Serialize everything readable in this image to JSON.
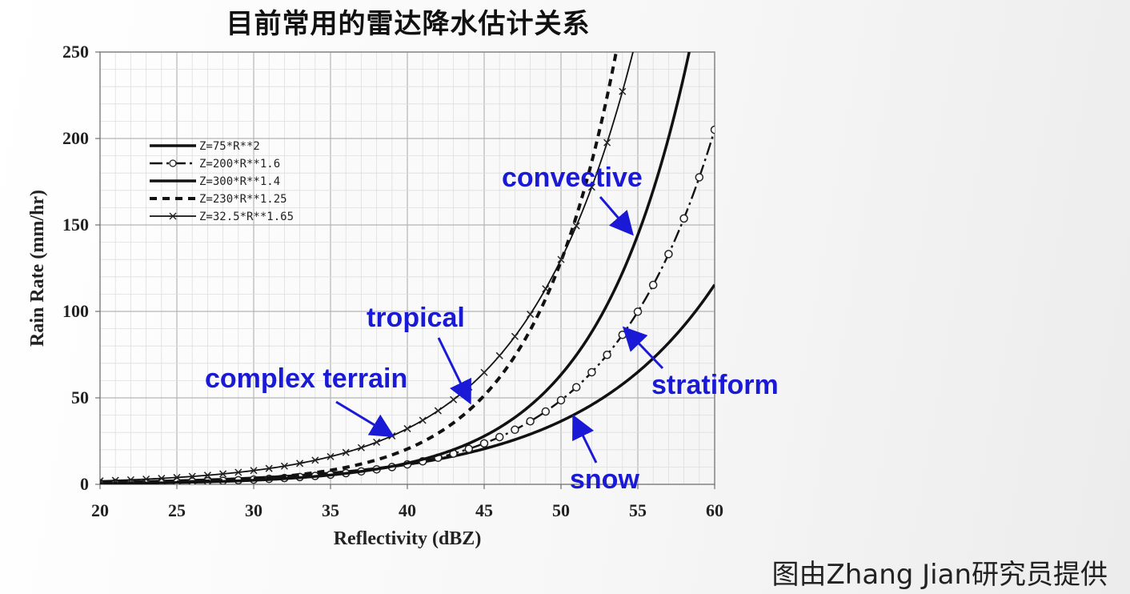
{
  "slide": {
    "title": "目前常用的雷达降水估计关系",
    "credit": "图由Zhang Jian研究员提供"
  },
  "chart_data": {
    "type": "line",
    "xlabel": "Reflectivity (dBZ)",
    "ylabel": "Rain Rate (mm/hr)",
    "xlim": [
      20,
      60
    ],
    "ylim": [
      0,
      250
    ],
    "xticks": [
      "20",
      "25",
      "30",
      "35",
      "40",
      "45",
      "50",
      "55",
      "60"
    ],
    "yticks": [
      "0",
      "50",
      "100",
      "150",
      "200",
      "250"
    ],
    "grid": true,
    "legend_position": "top-left",
    "series": [
      {
        "name": "Z=75*R**2",
        "a": 75,
        "b": 2,
        "line": "solid-thick",
        "marker": "none"
      },
      {
        "name": "Z=200*R**1.6",
        "a": 200,
        "b": 1.6,
        "line": "dash-dot",
        "marker": "circle"
      },
      {
        "name": "Z=300*R**1.4",
        "a": 300,
        "b": 1.4,
        "line": "solid-thick",
        "marker": "none"
      },
      {
        "name": "Z=230*R**1.25",
        "a": 230,
        "b": 1.25,
        "line": "dashed",
        "marker": "none"
      },
      {
        "name": "Z=32.5*R**1.65",
        "a": 32.5,
        "b": 1.65,
        "line": "solid-thin",
        "marker": "x"
      }
    ],
    "annotations": [
      {
        "text": "convective",
        "target_series": "Z=300*R**1.4"
      },
      {
        "text": "tropical",
        "target_series": "Z=230*R**1.25"
      },
      {
        "text": "complex terrain",
        "target_series": "Z=32.5*R**1.65"
      },
      {
        "text": "stratiform",
        "target_series": "Z=200*R**1.6"
      },
      {
        "text": "snow",
        "target_series": "Z=75*R**2"
      }
    ],
    "colors": {
      "lines": "#111111",
      "annotation": "#1a1ad6",
      "grid": "#c8c8c8"
    }
  }
}
